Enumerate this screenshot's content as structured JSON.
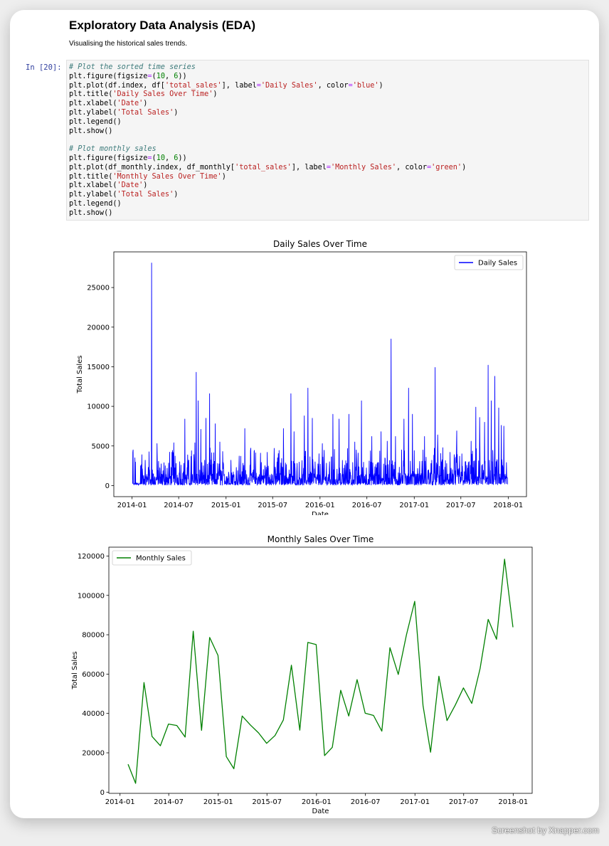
{
  "notebook": {
    "heading": "Exploratory Data Analysis (EDA)",
    "description": "Visualising the historical sales trends.",
    "prompt": "In [20]:",
    "code_lines": [
      [
        {
          "t": "# Plot the sorted time series",
          "c": "cm"
        }
      ],
      [
        {
          "t": "plt.figure(figsize"
        },
        {
          "t": "=",
          "c": "op"
        },
        {
          "t": "("
        },
        {
          "t": "10",
          "c": "nu"
        },
        {
          "t": ", "
        },
        {
          "t": "6",
          "c": "nu"
        },
        {
          "t": "))"
        }
      ],
      [
        {
          "t": "plt.plot(df.index, df["
        },
        {
          "t": "'total_sales'",
          "c": "st"
        },
        {
          "t": "], label"
        },
        {
          "t": "=",
          "c": "op"
        },
        {
          "t": "'Daily Sales'",
          "c": "st"
        },
        {
          "t": ", color"
        },
        {
          "t": "=",
          "c": "op"
        },
        {
          "t": "'blue'",
          "c": "st"
        },
        {
          "t": ")"
        }
      ],
      [
        {
          "t": "plt.title("
        },
        {
          "t": "'Daily Sales Over Time'",
          "c": "st"
        },
        {
          "t": ")"
        }
      ],
      [
        {
          "t": "plt.xlabel("
        },
        {
          "t": "'Date'",
          "c": "st"
        },
        {
          "t": ")"
        }
      ],
      [
        {
          "t": "plt.ylabel("
        },
        {
          "t": "'Total Sales'",
          "c": "st"
        },
        {
          "t": ")"
        }
      ],
      [
        {
          "t": "plt.legend()"
        }
      ],
      [
        {
          "t": "plt.show()"
        }
      ],
      [
        {
          "t": ""
        }
      ],
      [
        {
          "t": "# Plot monthly sales",
          "c": "cm"
        }
      ],
      [
        {
          "t": "plt.figure(figsize"
        },
        {
          "t": "=",
          "c": "op"
        },
        {
          "t": "("
        },
        {
          "t": "10",
          "c": "nu"
        },
        {
          "t": ", "
        },
        {
          "t": "6",
          "c": "nu"
        },
        {
          "t": "))"
        }
      ],
      [
        {
          "t": "plt.plot(df_monthly.index, df_monthly["
        },
        {
          "t": "'total_sales'",
          "c": "st"
        },
        {
          "t": "], label"
        },
        {
          "t": "=",
          "c": "op"
        },
        {
          "t": "'Monthly Sales'",
          "c": "st"
        },
        {
          "t": ", color"
        },
        {
          "t": "=",
          "c": "op"
        },
        {
          "t": "'green'",
          "c": "st"
        },
        {
          "t": ")"
        }
      ],
      [
        {
          "t": "plt.title("
        },
        {
          "t": "'Monthly Sales Over Time'",
          "c": "st"
        },
        {
          "t": ")"
        }
      ],
      [
        {
          "t": "plt.xlabel("
        },
        {
          "t": "'Date'",
          "c": "st"
        },
        {
          "t": ")"
        }
      ],
      [
        {
          "t": "plt.ylabel("
        },
        {
          "t": "'Total Sales'",
          "c": "st"
        },
        {
          "t": ")"
        }
      ],
      [
        {
          "t": "plt.legend()"
        }
      ],
      [
        {
          "t": "plt.show()"
        }
      ]
    ]
  },
  "watermark": "Screenshot by Xnapper.com",
  "chart_data": [
    {
      "type": "line",
      "title": "Daily Sales Over Time",
      "xlabel": "Date",
      "ylabel": "Total Sales",
      "x_range": [
        "2014-01-03",
        "2017-12-30"
      ],
      "ylim": [
        -1400,
        29500
      ],
      "x_ticks": [
        "2014-01",
        "2014-07",
        "2015-01",
        "2015-07",
        "2016-01",
        "2016-07",
        "2017-01",
        "2017-07",
        "2018-01"
      ],
      "y_ticks": [
        0,
        5000,
        10000,
        15000,
        20000,
        25000
      ],
      "legend_position": "upper right",
      "series": [
        {
          "name": "Daily Sales",
          "color": "#0000ff",
          "peaks": [
            {
              "x": "2014-01-05",
              "y": 4500
            },
            {
              "x": "2014-01-12",
              "y": 3500
            },
            {
              "x": "2014-02-10",
              "y": 2100
            },
            {
              "x": "2014-03-05",
              "y": 2300
            },
            {
              "x": "2014-03-18",
              "y": 28100
            },
            {
              "x": "2014-04-08",
              "y": 5300
            },
            {
              "x": "2014-05-10",
              "y": 2500
            },
            {
              "x": "2014-06-05",
              "y": 4200
            },
            {
              "x": "2014-06-12",
              "y": 5400
            },
            {
              "x": "2014-07-05",
              "y": 3000
            },
            {
              "x": "2014-07-25",
              "y": 8400
            },
            {
              "x": "2014-08-20",
              "y": 4400
            },
            {
              "x": "2014-09-02",
              "y": 5400
            },
            {
              "x": "2014-09-07",
              "y": 14300
            },
            {
              "x": "2014-09-15",
              "y": 10700
            },
            {
              "x": "2014-09-25",
              "y": 7100
            },
            {
              "x": "2014-10-15",
              "y": 8500
            },
            {
              "x": "2014-10-29",
              "y": 11600
            },
            {
              "x": "2014-11-20",
              "y": 7800
            },
            {
              "x": "2014-12-08",
              "y": 5500
            },
            {
              "x": "2015-01-20",
              "y": 3200
            },
            {
              "x": "2015-03-15",
              "y": 7200
            },
            {
              "x": "2015-04-20",
              "y": 4300
            },
            {
              "x": "2015-05-15",
              "y": 4100
            },
            {
              "x": "2015-06-10",
              "y": 4200
            },
            {
              "x": "2015-07-20",
              "y": 3500
            },
            {
              "x": "2015-08-12",
              "y": 7200
            },
            {
              "x": "2015-09-10",
              "y": 11600
            },
            {
              "x": "2015-09-22",
              "y": 6800
            },
            {
              "x": "2015-11-01",
              "y": 8800
            },
            {
              "x": "2015-11-15",
              "y": 12300
            },
            {
              "x": "2015-12-02",
              "y": 8500
            },
            {
              "x": "2016-01-10",
              "y": 5300
            },
            {
              "x": "2016-02-20",
              "y": 9000
            },
            {
              "x": "2016-03-15",
              "y": 8400
            },
            {
              "x": "2016-04-22",
              "y": 9000
            },
            {
              "x": "2016-05-15",
              "y": 5500
            },
            {
              "x": "2016-06-10",
              "y": 10700
            },
            {
              "x": "2016-07-20",
              "y": 6200
            },
            {
              "x": "2016-08-25",
              "y": 6800
            },
            {
              "x": "2016-09-18",
              "y": 5600
            },
            {
              "x": "2016-10-03",
              "y": 18500
            },
            {
              "x": "2016-10-20",
              "y": 6200
            },
            {
              "x": "2016-11-22",
              "y": 8400
            },
            {
              "x": "2016-12-10",
              "y": 12300
            },
            {
              "x": "2016-12-25",
              "y": 9000
            },
            {
              "x": "2017-02-10",
              "y": 6200
            },
            {
              "x": "2017-03-23",
              "y": 14900
            },
            {
              "x": "2017-04-02",
              "y": 6400
            },
            {
              "x": "2017-05-20",
              "y": 4200
            },
            {
              "x": "2017-06-15",
              "y": 6900
            },
            {
              "x": "2017-08-10",
              "y": 5600
            },
            {
              "x": "2017-08-28",
              "y": 9900
            },
            {
              "x": "2017-09-12",
              "y": 8600
            },
            {
              "x": "2017-10-01",
              "y": 8000
            },
            {
              "x": "2017-10-15",
              "y": 15200
            },
            {
              "x": "2017-10-27",
              "y": 10700
            },
            {
              "x": "2017-11-10",
              "y": 13800
            },
            {
              "x": "2017-11-25",
              "y": 9800
            },
            {
              "x": "2017-12-05",
              "y": 7600
            },
            {
              "x": "2017-12-15",
              "y": 7500
            },
            {
              "x": "2017-12-25",
              "y": 2900
            }
          ]
        }
      ]
    },
    {
      "type": "line",
      "title": "Monthly Sales Over Time",
      "xlabel": "Date",
      "ylabel": "Total Sales",
      "x_range": [
        "2014-01-31",
        "2017-12-31"
      ],
      "ylim": [
        -600,
        124500
      ],
      "x_ticks": [
        "2014-01",
        "2014-07",
        "2015-01",
        "2015-07",
        "2016-01",
        "2016-07",
        "2017-01",
        "2017-07",
        "2018-01"
      ],
      "y_ticks": [
        0,
        20000,
        40000,
        60000,
        80000,
        100000,
        120000
      ],
      "legend_position": "upper left",
      "series": [
        {
          "name": "Monthly Sales",
          "color": "#008000",
          "x": [
            "2014-01-31",
            "2014-02-28",
            "2014-03-31",
            "2014-04-30",
            "2014-05-31",
            "2014-06-30",
            "2014-07-31",
            "2014-08-31",
            "2014-09-30",
            "2014-10-31",
            "2014-11-30",
            "2014-12-31",
            "2015-01-31",
            "2015-02-28",
            "2015-03-31",
            "2015-04-30",
            "2015-05-31",
            "2015-06-30",
            "2015-07-31",
            "2015-08-31",
            "2015-09-30",
            "2015-10-31",
            "2015-11-30",
            "2015-12-31",
            "2016-01-31",
            "2016-02-29",
            "2016-03-31",
            "2016-04-30",
            "2016-05-31",
            "2016-06-30",
            "2016-07-31",
            "2016-08-31",
            "2016-09-30",
            "2016-10-31",
            "2016-11-30",
            "2016-12-31",
            "2017-01-31",
            "2017-02-28",
            "2017-03-31",
            "2017-04-30",
            "2017-05-31",
            "2017-06-30",
            "2017-07-31",
            "2017-08-31",
            "2017-09-30",
            "2017-10-31",
            "2017-11-30",
            "2017-12-31"
          ],
          "values": [
            14200,
            4500,
            55700,
            28300,
            23600,
            34600,
            33900,
            28000,
            81800,
            31400,
            78600,
            69500,
            18100,
            11900,
            38700,
            34200,
            30100,
            24800,
            28800,
            36700,
            64500,
            31500,
            76100,
            75000,
            18600,
            22800,
            51800,
            38700,
            57200,
            40100,
            39000,
            31000,
            73400,
            59800,
            79800,
            97000,
            44000,
            20300,
            58900,
            36400,
            44300,
            53000,
            45100,
            62800,
            87800,
            77700,
            118400,
            83800
          ]
        }
      ]
    }
  ]
}
